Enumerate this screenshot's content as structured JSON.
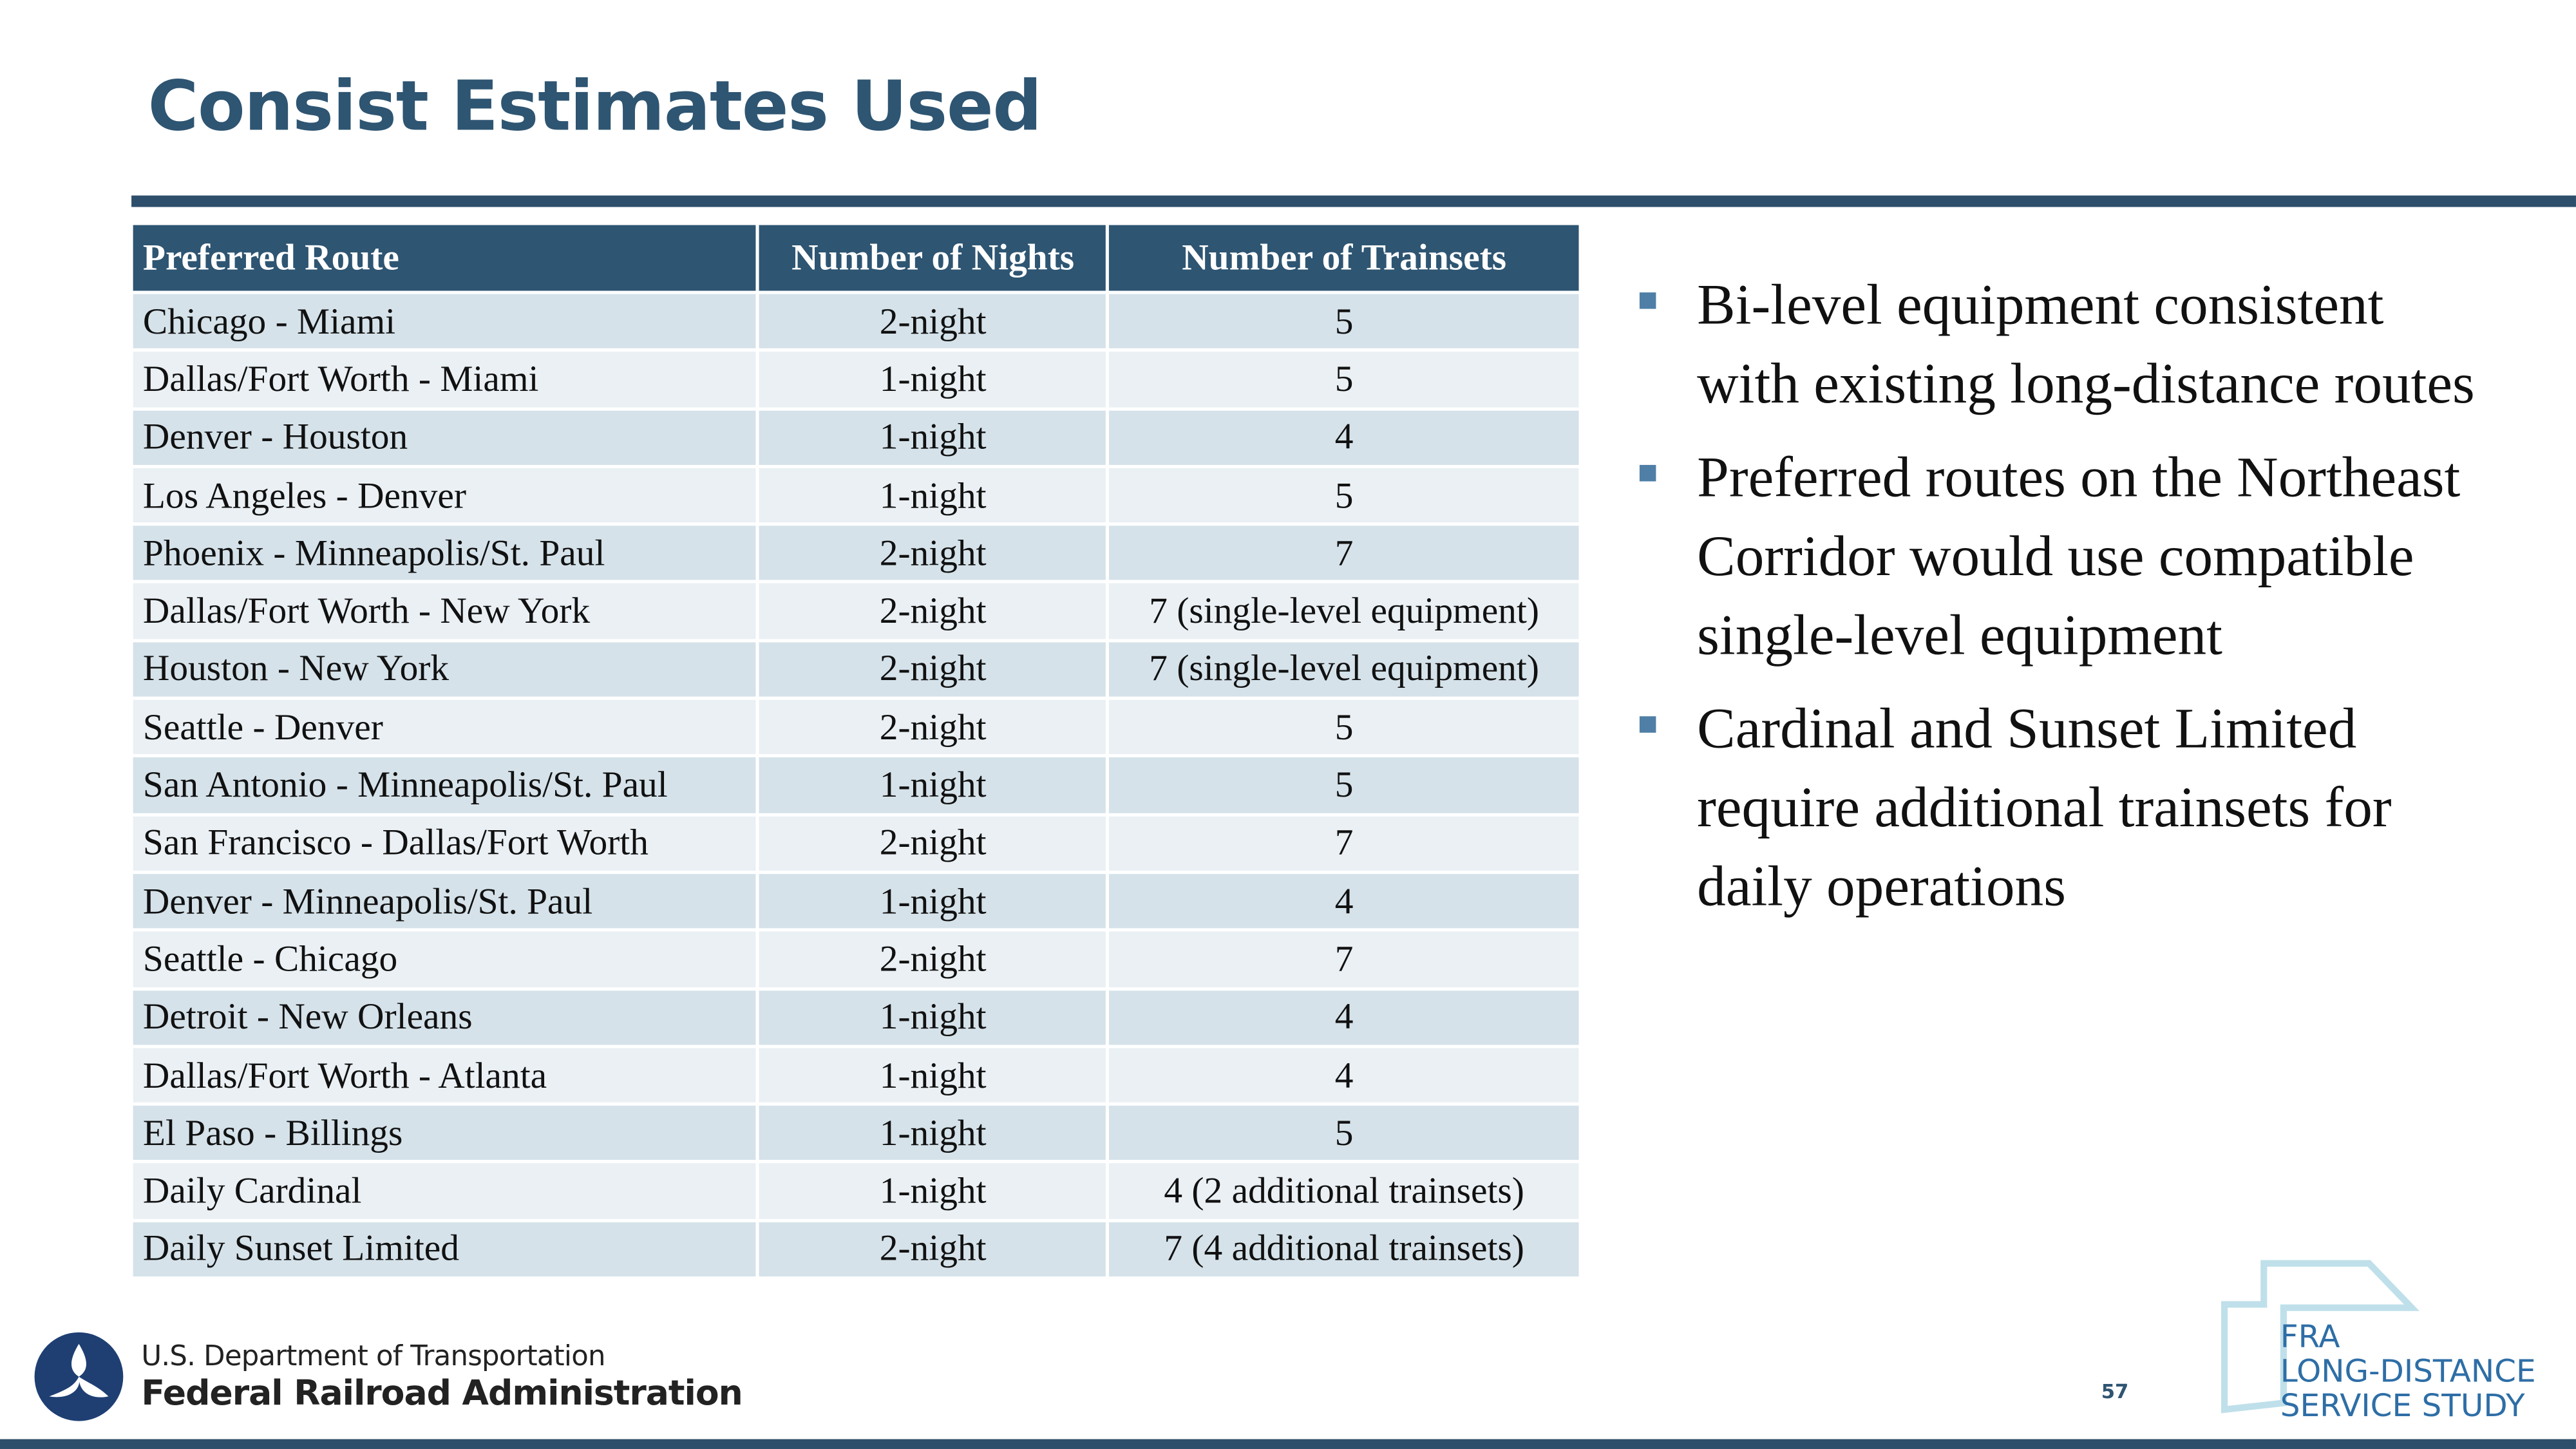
{
  "header": {
    "title": "Consist Estimates Used"
  },
  "table": {
    "columns": [
      "Preferred Route",
      "Number of Nights",
      "Number of Trainsets"
    ],
    "rows": [
      [
        "Chicago - Miami",
        "2-night",
        "5"
      ],
      [
        "Dallas/Fort Worth - Miami",
        "1-night",
        "5"
      ],
      [
        "Denver - Houston",
        "1-night",
        "4"
      ],
      [
        "Los Angeles - Denver",
        "1-night",
        "5"
      ],
      [
        "Phoenix - Minneapolis/St. Paul",
        "2-night",
        "7"
      ],
      [
        "Dallas/Fort Worth - New York",
        "2-night",
        "7 (single-level equipment)"
      ],
      [
        "Houston - New York",
        "2-night",
        "7 (single-level equipment)"
      ],
      [
        "Seattle - Denver",
        "2-night",
        "5"
      ],
      [
        "San Antonio - Minneapolis/St. Paul",
        "1-night",
        "5"
      ],
      [
        "San Francisco - Dallas/Fort Worth",
        "2-night",
        "7"
      ],
      [
        "Denver - Minneapolis/St. Paul",
        "1-night",
        "4"
      ],
      [
        "Seattle - Chicago",
        "2-night",
        "7"
      ],
      [
        "Detroit - New Orleans",
        "1-night",
        "4"
      ],
      [
        "Dallas/Fort Worth - Atlanta",
        "1-night",
        "4"
      ],
      [
        "El Paso - Billings",
        "1-night",
        "5"
      ],
      [
        "Daily Cardinal",
        "1-night",
        "4 (2 additional trainsets)"
      ],
      [
        "Daily Sunset Limited",
        "2-night",
        "7 (4 additional trainsets)"
      ]
    ]
  },
  "bullets": [
    "Bi-level equipment consistent with existing long-distance routes",
    "Preferred routes on the Northeast Corridor would use compatible single-level equipment",
    "Cardinal and Sunset Limited require additional trainsets for daily operations"
  ],
  "footer": {
    "agency_line1": "U.S. Department of Transportation",
    "agency_line2": "Federal Railroad Administration",
    "page_number": "57",
    "study_logo": [
      "FRA",
      "LONG-DISTANCE",
      "SERVICE STUDY"
    ]
  }
}
